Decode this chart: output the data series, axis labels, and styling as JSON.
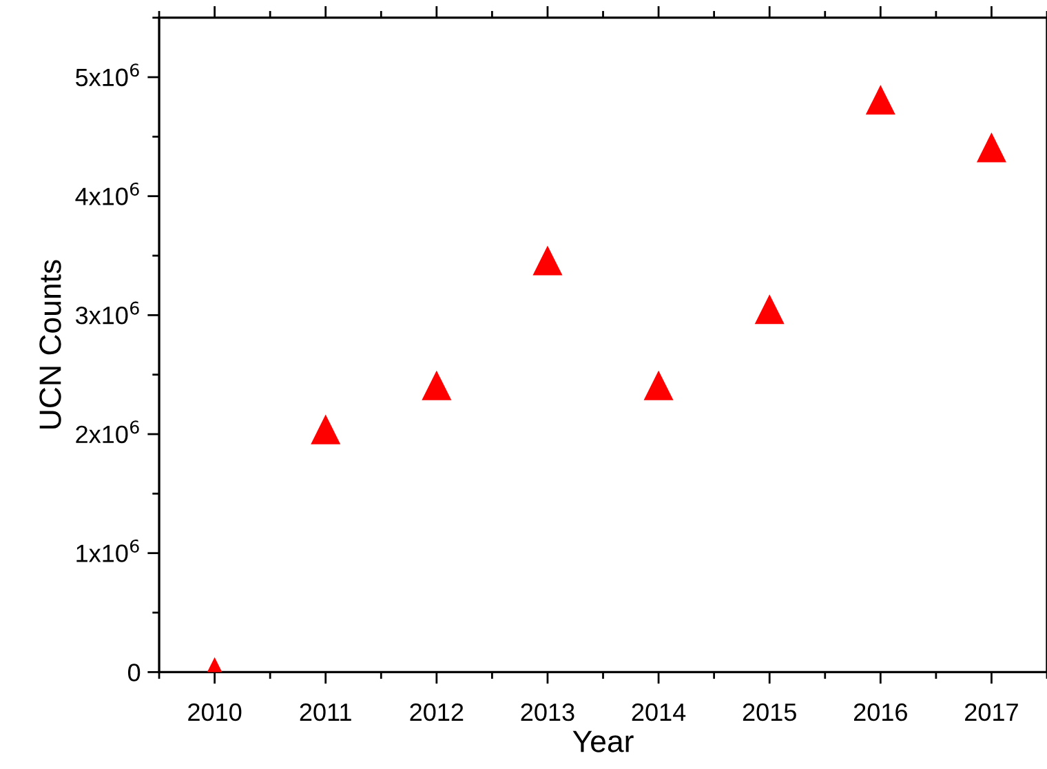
{
  "chart_data": {
    "type": "scatter",
    "xlabel": "Year",
    "ylabel": "UCN Counts",
    "x": [
      2010,
      2011,
      2012,
      2013,
      2014,
      2015,
      2016,
      2017
    ],
    "series": [
      {
        "color": "#ff0000",
        "values": [
          0,
          2040000,
          2410000,
          3460000,
          2410000,
          3050000,
          4810000,
          4410000
        ]
      }
    ],
    "marker": "triangle",
    "grid": false,
    "legend": false,
    "xlim": [
      2009.5,
      2017.5
    ],
    "xticks": [
      2010,
      2011,
      2012,
      2013,
      2014,
      2015,
      2016,
      2017
    ],
    "ylim": [
      0,
      5500000
    ],
    "yticks": [
      0,
      {
        "value": 1000000,
        "label": "1x10$^{6}$"
      },
      {
        "value": 2000000,
        "label": "2x10$^{6}$"
      },
      {
        "value": 3000000,
        "label": "3x10$^{6}$"
      },
      {
        "value": 4000000,
        "label": "4x10$^{6}$"
      },
      {
        "value": 5000000,
        "label": "5x10$^{6}$"
      }
    ]
  }
}
